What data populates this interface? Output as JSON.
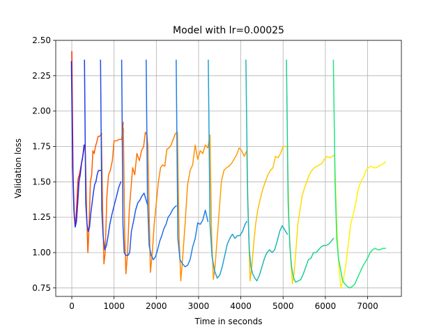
{
  "chart_data": {
    "type": "line",
    "title": "Model with lr=0.00025",
    "xlabel": "Time in seconds",
    "ylabel": "Validation loss",
    "xlim": [
      -380,
      7800
    ],
    "ylim": [
      0.69,
      2.5
    ],
    "xticks": [
      0,
      1000,
      2000,
      3000,
      4000,
      5000,
      6000,
      7000
    ],
    "xtick_labels": [
      "0",
      "1000",
      "2000",
      "3000",
      "4000",
      "5000",
      "6000",
      "7000"
    ],
    "yticks": [
      0.75,
      1.0,
      1.25,
      1.5,
      1.75,
      2.0,
      2.25,
      2.5
    ],
    "ytick_labels": [
      "0.75",
      "1.00",
      "1.25",
      "1.50",
      "1.75",
      "2.00",
      "2.25",
      "2.50"
    ],
    "grid": true,
    "legend": "none",
    "series": [
      {
        "color": "#ff1a00",
        "x": [
          0,
          30,
          60,
          90,
          120,
          150,
          180,
          210,
          240,
          270,
          310
        ],
        "y": [
          2.42,
          1.55,
          1.25,
          1.2,
          1.35,
          1.52,
          1.55,
          1.6,
          1.65,
          1.7,
          1.76
        ]
      },
      {
        "color": "#1f2de6",
        "x": [
          -10,
          20,
          50,
          80,
          110,
          140,
          170,
          200,
          230,
          260,
          290
        ],
        "y": [
          2.35,
          1.6,
          1.3,
          1.18,
          1.22,
          1.35,
          1.5,
          1.55,
          1.63,
          1.68,
          1.76
        ]
      },
      {
        "color": "#ff5a00",
        "x": [
          320,
          350,
          380,
          410,
          440,
          470,
          500,
          530,
          560,
          590,
          620,
          650,
          680,
          710
        ],
        "y": [
          1.72,
          1.3,
          1.0,
          1.2,
          1.5,
          1.55,
          1.72,
          1.7,
          1.75,
          1.78,
          1.82,
          1.82,
          1.83,
          1.84
        ]
      },
      {
        "color": "#1f3ce6",
        "x": [
          300,
          330,
          360,
          390,
          420,
          450,
          480,
          510,
          540,
          570,
          600,
          630,
          660,
          690
        ],
        "y": [
          2.36,
          1.35,
          1.2,
          1.15,
          1.18,
          1.28,
          1.35,
          1.42,
          1.48,
          1.5,
          1.55,
          1.58,
          1.58,
          1.58
        ]
      },
      {
        "color": "#ff6a00",
        "x": [
          700,
          730,
          760,
          790,
          830,
          870,
          910,
          960,
          1000,
          1060,
          1120,
          1180,
          1220
        ],
        "y": [
          1.84,
          1.3,
          0.92,
          1.0,
          1.4,
          1.55,
          1.58,
          1.65,
          1.79,
          1.79,
          1.8,
          1.8,
          1.92
        ]
      },
      {
        "color": "#1f4be6",
        "x": [
          680,
          710,
          740,
          780,
          820,
          860,
          900,
          950,
          1000,
          1060,
          1110,
          1160
        ],
        "y": [
          2.36,
          1.3,
          1.12,
          1.02,
          1.05,
          1.12,
          1.2,
          1.27,
          1.33,
          1.4,
          1.46,
          1.5
        ]
      },
      {
        "color": "#ff6f00",
        "x": [
          1220,
          1250,
          1280,
          1320,
          1360,
          1400,
          1440,
          1490,
          1540,
          1600,
          1650,
          1700,
          1740,
          1780,
          1800
        ],
        "y": [
          1.88,
          1.15,
          0.85,
          1.0,
          1.3,
          1.45,
          1.6,
          1.55,
          1.7,
          1.65,
          1.72,
          1.75,
          1.85,
          1.83,
          1.75
        ]
      },
      {
        "color": "#1f5ae6",
        "x": [
          1180,
          1210,
          1240,
          1280,
          1330,
          1370,
          1410,
          1460,
          1510,
          1560,
          1610,
          1660,
          1710,
          1750,
          1790
        ],
        "y": [
          2.36,
          1.2,
          1.0,
          0.98,
          0.98,
          1.0,
          1.15,
          1.22,
          1.3,
          1.35,
          1.37,
          1.4,
          1.42,
          1.38,
          1.34
        ]
      },
      {
        "color": "#ff8200",
        "x": [
          1800,
          1830,
          1860,
          1900,
          1950,
          2000,
          2050,
          2100,
          2150,
          2200,
          2250,
          2300,
          2350,
          2400,
          2450,
          2500
        ],
        "y": [
          1.75,
          1.3,
          0.86,
          0.98,
          1.2,
          1.35,
          1.5,
          1.6,
          1.62,
          1.61,
          1.73,
          1.74,
          1.76,
          1.8,
          1.84,
          1.85
        ]
      },
      {
        "color": "#1f6ee6",
        "x": [
          1760,
          1790,
          1830,
          1880,
          1930,
          1980,
          2030,
          2080,
          2130,
          2180,
          2230,
          2280,
          2330,
          2380,
          2430,
          2470
        ],
        "y": [
          2.36,
          1.4,
          1.05,
          0.98,
          0.95,
          0.97,
          1.02,
          1.08,
          1.12,
          1.17,
          1.2,
          1.25,
          1.27,
          1.3,
          1.32,
          1.33
        ]
      },
      {
        "color": "#ff9000",
        "x": [
          2500,
          2540,
          2580,
          2620,
          2680,
          2740,
          2800,
          2860,
          2920,
          2980,
          3040,
          3100,
          3160,
          3220,
          3270
        ],
        "y": [
          1.84,
          1.1,
          0.8,
          0.95,
          1.2,
          1.48,
          1.58,
          1.62,
          1.76,
          1.66,
          1.72,
          1.7,
          1.76,
          1.74,
          1.83
        ]
      },
      {
        "color": "#1f80e6",
        "x": [
          2470,
          2510,
          2560,
          2620,
          2680,
          2740,
          2800,
          2860,
          2920,
          2980,
          3040,
          3100,
          3160,
          3220
        ],
        "y": [
          2.36,
          1.1,
          0.95,
          0.92,
          0.9,
          0.91,
          0.95,
          1.04,
          1.1,
          1.21,
          1.2,
          1.23,
          1.3,
          1.22
        ]
      },
      {
        "color": "#ff9e00",
        "x": [
          3270,
          3310,
          3350,
          3390,
          3440,
          3490,
          3540,
          3600,
          3660,
          3720,
          3780,
          3840,
          3900,
          3960,
          4020,
          4080,
          4140
        ],
        "y": [
          1.83,
          1.1,
          0.81,
          0.9,
          1.1,
          1.3,
          1.5,
          1.58,
          1.6,
          1.61,
          1.63,
          1.66,
          1.69,
          1.74,
          1.72,
          1.68,
          1.72
        ]
      },
      {
        "color": "#1f9fd0",
        "x": [
          3230,
          3270,
          3320,
          3380,
          3440,
          3500,
          3560,
          3620,
          3680,
          3740,
          3800,
          3860,
          3920,
          3980,
          4040,
          4100,
          4140
        ],
        "y": [
          2.36,
          1.2,
          0.97,
          0.87,
          0.82,
          0.84,
          0.9,
          0.98,
          1.06,
          1.1,
          1.13,
          1.1,
          1.12,
          1.12,
          1.15,
          1.2,
          1.22
        ]
      },
      {
        "color": "#ffbe00",
        "x": [
          4140,
          4180,
          4220,
          4260,
          4300,
          4350,
          4400,
          4460,
          4520,
          4580,
          4640,
          4700,
          4760,
          4820,
          4880,
          4940,
          5000,
          5060,
          5110
        ],
        "y": [
          1.72,
          1.2,
          0.8,
          0.9,
          1.05,
          1.2,
          1.3,
          1.38,
          1.45,
          1.5,
          1.55,
          1.58,
          1.6,
          1.68,
          1.67,
          1.7,
          1.75,
          1.75,
          1.75
        ]
      },
      {
        "color": "#1fb5b5",
        "x": [
          4120,
          4160,
          4200,
          4240,
          4280,
          4330,
          4380,
          4440,
          4500,
          4560,
          4620,
          4680,
          4740,
          4800,
          4860,
          4920,
          4980,
          5040,
          5100
        ],
        "y": [
          2.36,
          1.4,
          1.02,
          0.9,
          0.85,
          0.82,
          0.8,
          0.84,
          0.9,
          0.96,
          1.0,
          1.02,
          1.0,
          1.02,
          1.08,
          1.15,
          1.19,
          1.16,
          1.13
        ]
      },
      {
        "color": "#ffdc00",
        "x": [
          5100,
          5140,
          5180,
          5220,
          5260,
          5300,
          5350,
          5400,
          5450,
          5500,
          5560,
          5620,
          5680,
          5740,
          5800,
          5860,
          5920,
          5980,
          6040,
          6100,
          6160,
          6220
        ],
        "y": [
          1.75,
          1.2,
          0.95,
          0.78,
          0.85,
          1.0,
          1.2,
          1.3,
          1.4,
          1.45,
          1.5,
          1.55,
          1.58,
          1.6,
          1.61,
          1.62,
          1.63,
          1.66,
          1.68,
          1.67,
          1.68,
          1.69
        ]
      },
      {
        "color": "#1fcc99",
        "x": [
          5080,
          5120,
          5160,
          5200,
          5250,
          5300,
          5360,
          5420,
          5480,
          5540,
          5600,
          5660,
          5720,
          5780,
          5840,
          5900,
          5960,
          6020,
          6080,
          6140,
          6190
        ],
        "y": [
          2.36,
          1.35,
          1.05,
          0.9,
          0.82,
          0.79,
          0.8,
          0.81,
          0.85,
          0.9,
          0.95,
          0.96,
          1.0,
          1.0,
          1.02,
          1.04,
          1.05,
          1.05,
          1.06,
          1.08,
          1.1
        ]
      },
      {
        "color": "#fff200",
        "x": [
          6220,
          6270,
          6320,
          6370,
          6420,
          6480,
          6540,
          6600,
          6660,
          6720,
          6780,
          6840,
          6900,
          6960,
          7020,
          7080,
          7140,
          7200,
          7260,
          7320,
          7380,
          7420
        ],
        "y": [
          1.69,
          1.2,
          0.9,
          0.75,
          0.8,
          0.9,
          1.05,
          1.2,
          1.27,
          1.35,
          1.45,
          1.5,
          1.53,
          1.58,
          1.6,
          1.61,
          1.6,
          1.6,
          1.61,
          1.62,
          1.63,
          1.64
        ]
      },
      {
        "color": "#1fe680",
        "x": [
          6190,
          6230,
          6270,
          6310,
          6360,
          6410,
          6460,
          6520,
          6580,
          6640,
          6700,
          6760,
          6820,
          6880,
          6940,
          7000,
          7060,
          7120,
          7180,
          7240,
          7300,
          7360,
          7420
        ],
        "y": [
          2.36,
          1.5,
          1.1,
          0.96,
          0.88,
          0.8,
          0.78,
          0.76,
          0.75,
          0.76,
          0.78,
          0.82,
          0.86,
          0.9,
          0.93,
          0.96,
          1.0,
          1.02,
          1.03,
          1.02,
          1.02,
          1.03,
          1.03
        ]
      }
    ]
  }
}
